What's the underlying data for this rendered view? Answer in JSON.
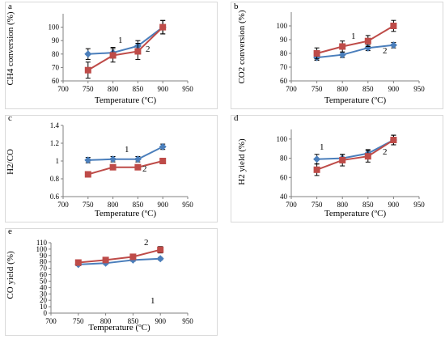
{
  "chart_data": [
    {
      "type": "line",
      "panel_label": "a",
      "xlabel": "Temperature (ºC)",
      "ylabel": "CH4 conversion (%)",
      "xlim": [
        700,
        950
      ],
      "ylim": [
        60,
        110
      ],
      "xticks": [
        "700",
        "750",
        "800",
        "850",
        "900",
        "950"
      ],
      "yticks": [
        "60",
        "70",
        "80",
        "90",
        "100"
      ],
      "x": [
        750,
        800,
        850,
        900
      ],
      "series": [
        {
          "name": "1",
          "color": "#4a7ebb",
          "marker": "diamond",
          "values": [
            80,
            81,
            86,
            100
          ],
          "err": [
            4,
            4,
            4,
            5
          ]
        },
        {
          "name": "2",
          "color": "#be4b48",
          "marker": "square",
          "values": [
            68,
            79,
            82,
            100
          ],
          "err": [
            6,
            5,
            6,
            5
          ]
        }
      ]
    },
    {
      "type": "line",
      "panel_label": "b",
      "xlabel": "Temperature (ºC)",
      "ylabel": "CO2 conversion (%)",
      "xlim": [
        700,
        950
      ],
      "ylim": [
        60,
        110
      ],
      "xticks": [
        "700",
        "750",
        "800",
        "850",
        "900",
        "950"
      ],
      "yticks": [
        "60",
        "70",
        "80",
        "90",
        "100"
      ],
      "x": [
        750,
        800,
        850,
        900
      ],
      "series": [
        {
          "name": "1",
          "color": "#4a7ebb",
          "marker": "diamond",
          "values": [
            77,
            79,
            84,
            86
          ],
          "err": [
            2,
            2,
            2,
            2
          ]
        },
        {
          "name": "2",
          "color": "#be4b48",
          "marker": "square",
          "values": [
            80,
            85,
            89,
            100
          ],
          "err": [
            4,
            4,
            4,
            4
          ]
        }
      ]
    },
    {
      "type": "line",
      "panel_label": "c",
      "xlabel": "Temperature (ºC)",
      "ylabel": "H2/CO",
      "xlim": [
        700,
        950
      ],
      "ylim": [
        0.6,
        1.4
      ],
      "xticks": [
        "700",
        "750",
        "800",
        "850",
        "900",
        "950"
      ],
      "yticks": [
        "0.6",
        "0.8",
        "1",
        "1.2",
        "1.4"
      ],
      "x": [
        750,
        800,
        850,
        900
      ],
      "series": [
        {
          "name": "1",
          "color": "#4a7ebb",
          "marker": "diamond",
          "values": [
            1.01,
            1.02,
            1.02,
            1.16
          ],
          "err": [
            0.03,
            0.03,
            0.03,
            0.03
          ]
        },
        {
          "name": "2",
          "color": "#be4b48",
          "marker": "square",
          "values": [
            0.85,
            0.93,
            0.93,
            1.0
          ],
          "err": [
            0.0,
            0.0,
            0.0,
            0.0
          ]
        }
      ]
    },
    {
      "type": "line",
      "panel_label": "d",
      "xlabel": "Temperature (ºC)",
      "ylabel": "H2 yield (%)",
      "xlim": [
        700,
        950
      ],
      "ylim": [
        40,
        110
      ],
      "xticks": [
        "700",
        "750",
        "800",
        "850",
        "900",
        "950"
      ],
      "yticks": [
        "40",
        "60",
        "80",
        "100"
      ],
      "x": [
        750,
        800,
        850,
        900
      ],
      "series": [
        {
          "name": "1",
          "color": "#4a7ebb",
          "marker": "diamond",
          "values": [
            79,
            80,
            85,
            99
          ],
          "err": [
            5,
            4,
            4,
            5
          ]
        },
        {
          "name": "2",
          "color": "#be4b48",
          "marker": "square",
          "values": [
            68,
            78,
            82,
            99
          ],
          "err": [
            6,
            6,
            6,
            5
          ]
        }
      ]
    },
    {
      "type": "line",
      "panel_label": "e",
      "xlabel": "Temperature (ºC)",
      "ylabel": "CO yield (%)",
      "xlim": [
        700,
        950
      ],
      "ylim": [
        0,
        110
      ],
      "xticks": [
        "700",
        "750",
        "800",
        "850",
        "900",
        "950"
      ],
      "yticks": [
        "0",
        "10",
        "20",
        "30",
        "40",
        "50",
        "60",
        "70",
        "80",
        "90",
        "100",
        "110"
      ],
      "x": [
        750,
        800,
        850,
        900
      ],
      "series": [
        {
          "name": "1",
          "color": "#4a7ebb",
          "marker": "diamond",
          "values": [
            76,
            78,
            83,
            85
          ],
          "err": [
            2,
            2,
            2,
            2
          ]
        },
        {
          "name": "2",
          "color": "#be4b48",
          "marker": "square",
          "values": [
            79,
            83,
            88,
            99
          ],
          "err": [
            4,
            4,
            4,
            5
          ]
        }
      ]
    }
  ]
}
